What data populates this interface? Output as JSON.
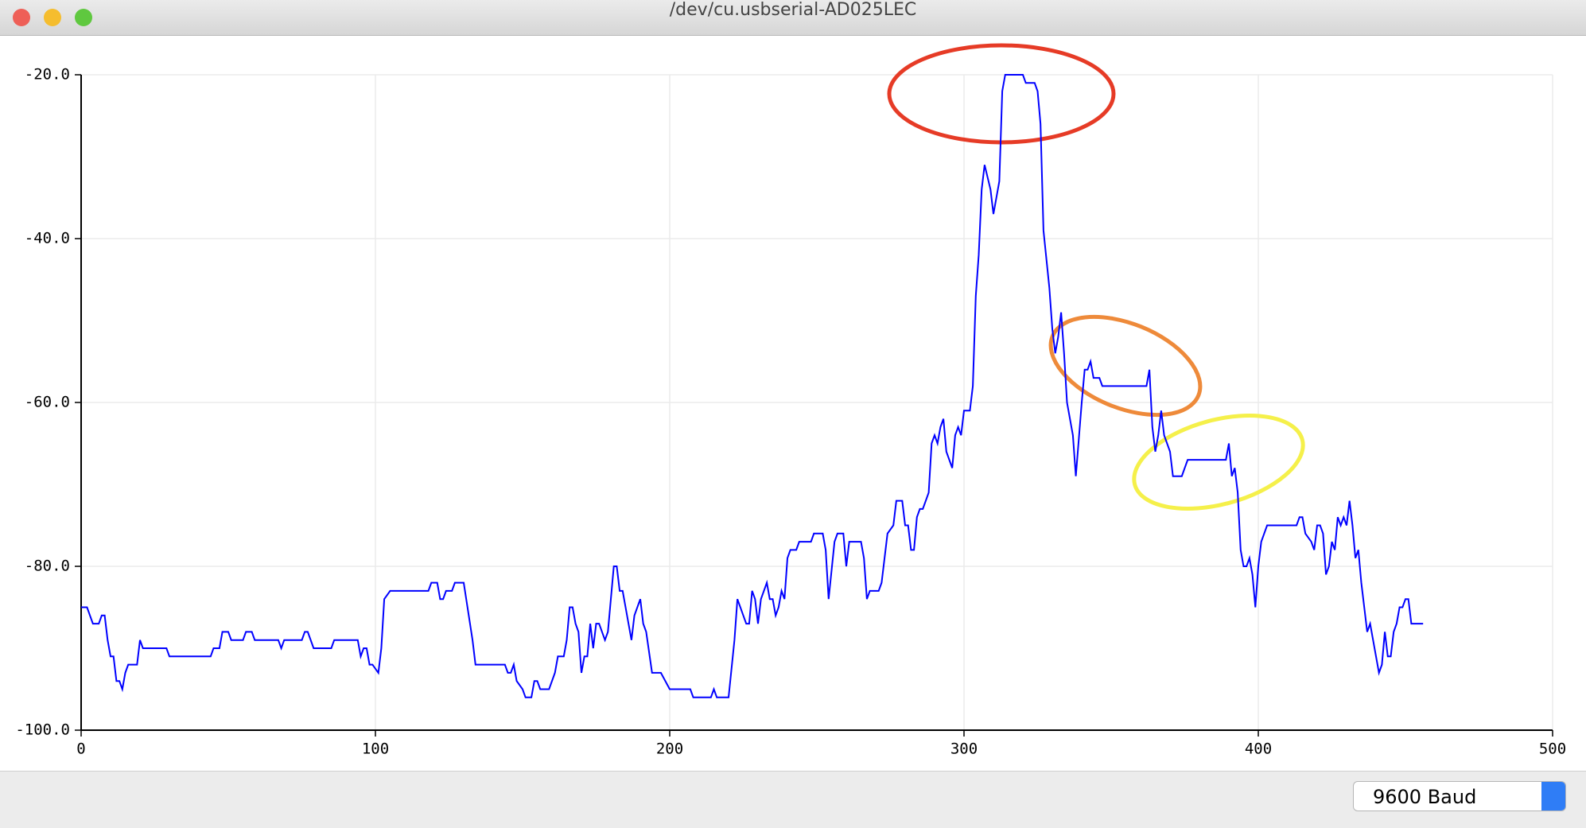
{
  "window": {
    "title": "/dev/cu.usbserial-AD025LEC"
  },
  "footer": {
    "baud": "9600 Baud"
  },
  "chart_data": {
    "type": "line",
    "xlim": [
      0,
      500
    ],
    "ylim": [
      -100,
      -20
    ],
    "xticks": [
      0,
      100,
      200,
      300,
      400,
      500
    ],
    "yticks": [
      {
        "value": -20,
        "label": "-20.0"
      },
      {
        "value": -40,
        "label": "-40.0"
      },
      {
        "value": -60,
        "label": "-60.0"
      },
      {
        "value": -80,
        "label": "-80.0"
      },
      {
        "value": -100,
        "label": "-100.0"
      }
    ],
    "grid": true,
    "x": [
      0,
      2,
      4,
      6,
      7,
      8,
      9,
      10,
      11,
      12,
      13,
      14,
      15,
      16,
      19,
      20,
      21,
      29,
      30,
      44,
      45,
      47,
      48,
      50,
      51,
      55,
      56,
      58,
      59,
      67,
      68,
      69,
      75,
      76,
      77,
      79,
      85,
      86,
      94,
      95,
      96,
      97,
      98,
      99,
      101,
      102,
      103,
      105,
      106,
      118,
      119,
      121,
      122,
      123,
      124,
      126,
      127,
      130,
      133,
      134,
      144,
      145,
      146,
      147,
      148,
      150,
      151,
      153,
      154,
      155,
      156,
      159,
      161,
      162,
      164,
      165,
      166,
      167,
      168,
      169,
      170,
      171,
      172,
      173,
      174,
      175,
      176,
      178,
      179,
      181,
      182,
      183,
      184,
      185,
      187,
      188,
      190,
      191,
      192,
      194,
      197,
      200,
      207,
      208,
      214,
      215,
      216,
      220,
      222,
      223,
      225,
      226,
      227,
      228,
      229,
      230,
      231,
      233,
      234,
      235,
      236,
      237,
      238,
      239,
      240,
      241,
      243,
      244,
      248,
      249,
      252,
      253,
      254,
      256,
      257,
      259,
      260,
      261,
      265,
      266,
      267,
      268,
      271,
      272,
      273,
      274,
      276,
      277,
      279,
      280,
      281,
      282,
      283,
      284,
      285,
      286,
      287,
      288,
      289,
      290,
      291,
      292,
      293,
      294,
      295,
      296,
      297,
      298,
      299,
      300,
      302,
      303,
      304,
      305,
      306,
      307,
      309,
      310,
      312,
      313,
      314,
      320,
      321,
      324,
      325,
      326,
      327,
      329,
      330,
      331,
      332,
      333,
      334,
      335,
      337,
      338,
      340,
      341,
      342,
      343,
      344,
      346,
      347,
      362,
      363,
      364,
      365,
      366,
      367,
      368,
      369,
      370,
      371,
      374,
      375,
      376,
      389,
      390,
      391,
      392,
      393,
      394,
      395,
      396,
      397,
      398,
      399,
      400,
      401,
      402,
      403,
      413,
      414,
      415,
      416,
      418,
      419,
      420,
      421,
      422,
      423,
      424,
      425,
      426,
      427,
      428,
      429,
      430,
      431,
      432,
      433,
      434,
      435,
      436,
      437,
      438,
      439,
      440,
      441,
      442,
      443,
      444,
      445,
      446,
      447,
      448,
      449,
      450,
      451,
      452,
      456
    ],
    "series": [
      {
        "color": "#0000ff",
        "values": [
          -85,
          -85,
          -87,
          -87,
          -86,
          -86,
          -89,
          -91,
          -91,
          -94,
          -94,
          -95,
          -93,
          -92,
          -92,
          -89,
          -90,
          -90,
          -91,
          -91,
          -90,
          -90,
          -88,
          -88,
          -89,
          -89,
          -88,
          -88,
          -89,
          -89,
          -90,
          -89,
          -89,
          -88,
          -88,
          -90,
          -90,
          -89,
          -89,
          -91,
          -90,
          -90,
          -92,
          -92,
          -93,
          -90,
          -84,
          -83,
          -83,
          -83,
          -82,
          -82,
          -84,
          -84,
          -83,
          -83,
          -82,
          -82,
          -89,
          -92,
          -92,
          -93,
          -93,
          -92,
          -94,
          -95,
          -96,
          -96,
          -94,
          -94,
          -95,
          -95,
          -93,
          -91,
          -91,
          -89,
          -85,
          -85,
          -87,
          -88,
          -93,
          -91,
          -91,
          -87,
          -90,
          -87,
          -87,
          -89,
          -88,
          -80,
          -80,
          -83,
          -83,
          -85,
          -89,
          -86,
          -84,
          -87,
          -88,
          -93,
          -93,
          -95,
          -95,
          -96,
          -96,
          -95,
          -96,
          -96,
          -89,
          -84,
          -86,
          -87,
          -87,
          -83,
          -84,
          -87,
          -84,
          -82,
          -84,
          -84,
          -86,
          -85,
          -83,
          -84,
          -79,
          -78,
          -78,
          -77,
          -77,
          -76,
          -76,
          -78,
          -84,
          -77,
          -76,
          -76,
          -80,
          -77,
          -77,
          -79,
          -84,
          -83,
          -83,
          -82,
          -79,
          -76,
          -75,
          -72,
          -72,
          -75,
          -75,
          -78,
          -78,
          -74,
          -73,
          -73,
          -72,
          -71,
          -65,
          -64,
          -65,
          -63,
          -62,
          -66,
          -67,
          -68,
          -64,
          -63,
          -64,
          -61,
          -61,
          -58,
          -47,
          -42,
          -34,
          -31,
          -34,
          -37,
          -33,
          -22,
          -20,
          -20,
          -21,
          -21,
          -22,
          -26,
          -39,
          -46,
          -51,
          -54,
          -52,
          -49,
          -54,
          -60,
          -64,
          -69,
          -60,
          -56,
          -56,
          -55,
          -57,
          -57,
          -58,
          -58,
          -56,
          -63,
          -66,
          -64,
          -61,
          -64,
          -65,
          -66,
          -69,
          -69,
          -68,
          -67,
          -67,
          -65,
          -69,
          -68,
          -71,
          -78,
          -80,
          -80,
          -79,
          -81,
          -85,
          -80,
          -77,
          -76,
          -75,
          -75,
          -74,
          -74,
          -76,
          -77,
          -78,
          -75,
          -75,
          -76,
          -81,
          -80,
          -77,
          -78,
          -74,
          -75,
          -74,
          -75,
          -72,
          -75,
          -79,
          -78,
          -82,
          -85,
          -88,
          -87,
          -89,
          -91,
          -93,
          -92,
          -88,
          -91,
          -91,
          -88,
          -87,
          -85,
          -85,
          -84,
          -84,
          -87,
          -87
        ]
      }
    ]
  }
}
